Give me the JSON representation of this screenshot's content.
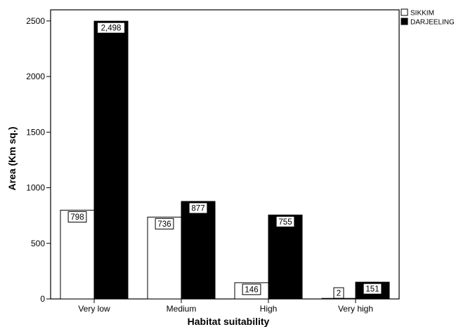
{
  "chart_data": {
    "type": "bar",
    "categories": [
      "Very low",
      "Medium",
      "High",
      "Very high"
    ],
    "series": [
      {
        "name": "SIKKIM",
        "values": [
          798,
          736,
          146,
          2
        ],
        "labels": [
          "798",
          "736",
          "146",
          "2"
        ],
        "color": "#ffffff"
      },
      {
        "name": "DARJEELING",
        "values": [
          2498,
          877,
          755,
          151
        ],
        "labels": [
          "2,498",
          "877",
          "755",
          "151"
        ],
        "color": "#000000"
      }
    ],
    "xlabel": "Habitat suitability",
    "ylabel": "Area (Km sq.)",
    "ylim": [
      0,
      2600
    ],
    "yticks": [
      0,
      500,
      1000,
      1500,
      2000,
      2500
    ],
    "ytick_labels": [
      "0",
      "500",
      "1000",
      "1500",
      "2000",
      "2500"
    ],
    "grid": false,
    "legend_position": "top-right"
  }
}
